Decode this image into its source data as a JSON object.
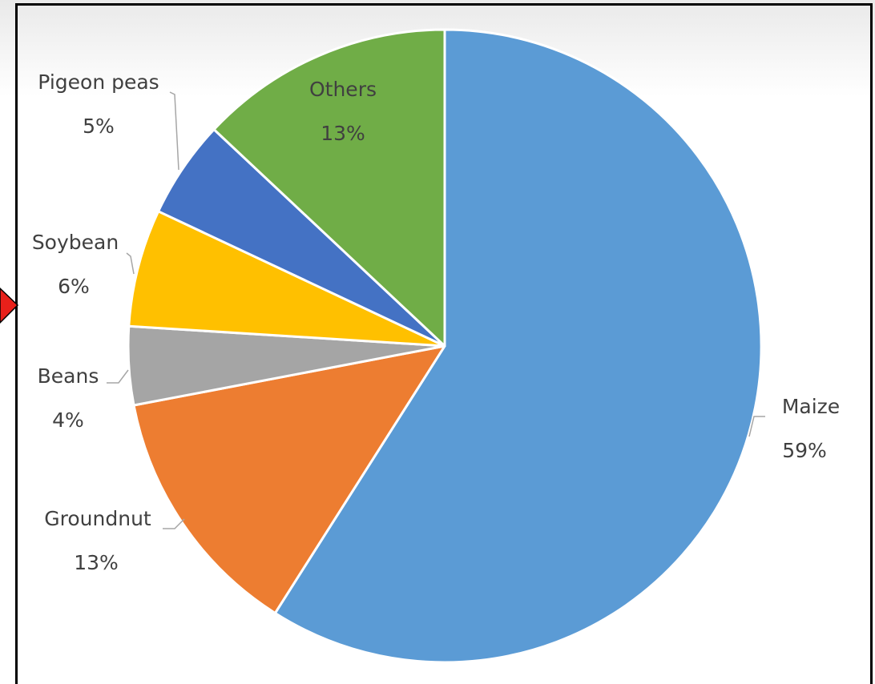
{
  "chart_data": {
    "type": "pie",
    "start_angle_deg": 0,
    "direction": "clockwise",
    "slices": [
      {
        "name": "Maize",
        "value": 59,
        "pct_label": "59%",
        "color": "#5B9BD5"
      },
      {
        "name": "Groundnut",
        "value": 13,
        "pct_label": "13%",
        "color": "#ED7D31"
      },
      {
        "name": "Beans",
        "value": 4,
        "pct_label": "4%",
        "color": "#A5A5A5"
      },
      {
        "name": "Soybean",
        "value": 6,
        "pct_label": "6%",
        "color": "#FFC000"
      },
      {
        "name": "Pigeon peas",
        "value": 5,
        "pct_label": "5%",
        "color": "#4472C4"
      },
      {
        "name": "Others",
        "value": 13,
        "pct_label": "13%",
        "color": "#70AD47"
      }
    ],
    "legend": "none",
    "data_labels": "category-and-percent"
  },
  "colors": {
    "accent_marker": "#E8201A",
    "frame_border": "#000000"
  }
}
